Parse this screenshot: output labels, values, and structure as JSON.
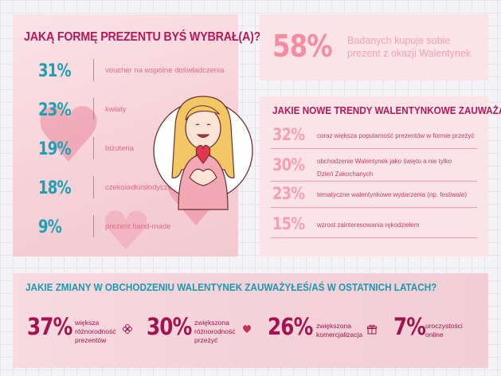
{
  "left_panel": {
    "title": "JAKĄ FORMĘ PREZENTU BYŚ WYBRAŁ(A)?",
    "options": [
      {
        "percent": "31%",
        "label": "voucher na wspólne doświadczenia"
      },
      {
        "percent": "23%",
        "label": "kwiaty"
      },
      {
        "percent": "19%",
        "label": "biżuteria"
      },
      {
        "percent": "18%",
        "label": "czekoladki/słodycze"
      },
      {
        "percent": "9%",
        "label": "prezent hand-made"
      }
    ]
  },
  "stat_panel": {
    "percent": "58%",
    "text": "Badanych kupuje sobie prezent z okazji Walentynek"
  },
  "trends_panel": {
    "title": "JAKIE NOWE TRENDY WALENTYNKOWE ZAUWAŻASZ?",
    "items": [
      {
        "percent": "32%",
        "label_lines": [
          "coraz większa popularność prezentów w formie przeżyć"
        ]
      },
      {
        "percent": "30%",
        "label_lines": [
          "obchodzenie Walentynek jako święto a nie tylko",
          "Dzień Zakochanych"
        ]
      },
      {
        "percent": "23%",
        "label_lines": [
          "tematyczne walentynkowe wydarzenia (np. festiwale)"
        ]
      },
      {
        "percent": "15%",
        "label_lines": [
          "wzrost zainteresowania rękodziełem"
        ]
      }
    ]
  },
  "bottom_panel": {
    "title": "JAKIE ZMIANY W OBCHODZENIU WALENTYNEK ZAUWAŻYŁEŚ/AŚ W OSTATNICH LATACH?",
    "items": [
      {
        "percent": "37%",
        "label_lines": [
          "większa",
          "różnorodność",
          "prezentów"
        ],
        "icon": "flower-icon"
      },
      {
        "percent": "30%",
        "label_lines": [
          "zwiększona",
          "różnorodność",
          "przeżyć"
        ],
        "icon": "heart-icon"
      },
      {
        "percent": "26%",
        "label_lines": [
          "zwiększona",
          "komercjalizacja"
        ],
        "icon": "gift-icon"
      },
      {
        "percent": "7%",
        "label_lines": [
          "uroczystości",
          "online"
        ],
        "icon": ""
      }
    ]
  },
  "colors": {
    "magenta": "#b6195a",
    "teal": "#1e9fb3",
    "pink_light": "#f48ca3",
    "orange_separator": "#f07a55"
  },
  "chart_data": [
    {
      "type": "bar",
      "title": "JAKĄ FORMĘ PREZENTU BYŚ WYBRAŁ(A)?",
      "categories": [
        "voucher na wspólne doświadczenia",
        "kwiaty",
        "biżuteria",
        "czekoladki/słodycze",
        "prezent hand-made"
      ],
      "values": [
        31,
        23,
        19,
        18,
        9
      ]
    },
    {
      "type": "bar",
      "title": "JAKIE NOWE TRENDY WALENTYNKOWE ZAUWAŻASZ?",
      "categories": [
        "coraz większa popularność prezentów w formie przeżyć",
        "obchodzenie Walentynek jako święto a nie tylko Dzień Zakochanych",
        "tematyczne walentynkowe wydarzenia (np. festiwale)",
        "wzrost zainteresowania rękodziełem"
      ],
      "values": [
        32,
        30,
        23,
        15
      ]
    },
    {
      "type": "bar",
      "title": "JAKIE ZMIANY W OBCHODZENIU WALENTYNEK ZAUWAŻYŁEŚ/AŚ W OSTATNICH LATACH?",
      "categories": [
        "większa różnorodność prezentów",
        "zwiększona różnorodność przeżyć",
        "zwiększona komercjalizacja",
        "uroczystości online"
      ],
      "values": [
        37,
        30,
        26,
        7
      ]
    }
  ]
}
